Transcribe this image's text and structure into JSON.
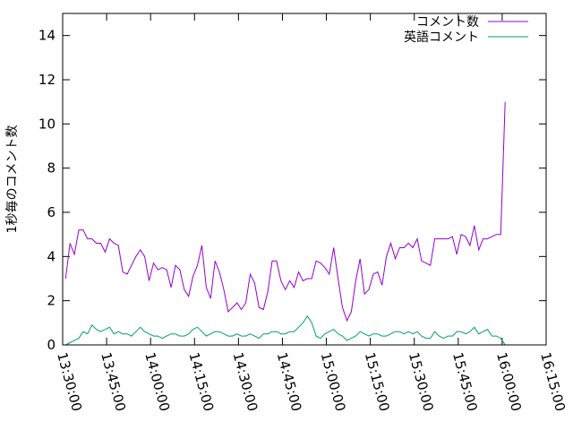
{
  "chart_data": {
    "type": "line",
    "title": "",
    "xlabel": "",
    "ylabel": "1秒毎のコメント数",
    "xlim": [
      "13:30:00",
      "16:15:00"
    ],
    "ylim": [
      0,
      15
    ],
    "x_ticks": [
      "13:30:00",
      "13:45:00",
      "14:00:00",
      "14:15:00",
      "14:30:00",
      "14:45:00",
      "15:00:00",
      "15:15:00",
      "15:30:00",
      "15:45:00",
      "16:00:00",
      "16:15:00"
    ],
    "y_ticks": [
      0,
      2,
      4,
      6,
      8,
      10,
      12,
      14
    ],
    "legend_position": "top-right",
    "grid": false,
    "x": [
      "13:31:00",
      "13:32:30",
      "13:34:00",
      "13:35:30",
      "13:37:00",
      "13:38:30",
      "13:40:00",
      "13:41:30",
      "13:43:00",
      "13:44:30",
      "13:46:00",
      "13:47:30",
      "13:49:00",
      "13:50:30",
      "13:52:00",
      "13:53:30",
      "13:55:00",
      "13:56:30",
      "13:58:00",
      "13:59:30",
      "14:01:00",
      "14:02:30",
      "14:04:00",
      "14:05:30",
      "14:07:00",
      "14:08:30",
      "14:10:00",
      "14:11:30",
      "14:13:00",
      "14:14:30",
      "14:16:00",
      "14:17:30",
      "14:19:00",
      "14:20:30",
      "14:22:00",
      "14:23:30",
      "14:25:00",
      "14:26:30",
      "14:28:00",
      "14:29:30",
      "14:31:00",
      "14:32:30",
      "14:34:00",
      "14:35:30",
      "14:37:00",
      "14:38:30",
      "14:40:00",
      "14:41:30",
      "14:43:00",
      "14:44:30",
      "14:46:00",
      "14:47:30",
      "14:49:00",
      "14:50:30",
      "14:52:00",
      "14:53:30",
      "14:55:00",
      "14:56:30",
      "14:58:00",
      "14:59:30",
      "15:01:00",
      "15:02:30",
      "15:04:00",
      "15:05:30",
      "15:07:00",
      "15:08:30",
      "15:10:00",
      "15:11:30",
      "15:13:00",
      "15:14:30",
      "15:16:00",
      "15:17:30",
      "15:19:00",
      "15:20:30",
      "15:22:00",
      "15:23:30",
      "15:25:00",
      "15:26:30",
      "15:28:00",
      "15:29:30",
      "15:31:00",
      "15:32:30",
      "15:34:00",
      "15:35:30",
      "15:37:00",
      "15:38:30",
      "15:40:00",
      "15:41:30",
      "15:43:00",
      "15:44:30",
      "15:46:00",
      "15:47:30",
      "15:49:00",
      "15:50:30",
      "15:52:00",
      "15:53:30",
      "15:55:00",
      "15:56:30",
      "15:58:00",
      "15:59:30",
      "16:01:00"
    ],
    "series": [
      {
        "name": "コメント数",
        "color": "#9400d3",
        "values": [
          3.0,
          4.6,
          4.1,
          5.2,
          5.2,
          4.8,
          4.8,
          4.6,
          4.6,
          4.2,
          4.8,
          4.6,
          4.5,
          3.3,
          3.2,
          3.6,
          4.0,
          4.3,
          4.0,
          2.9,
          3.7,
          3.4,
          3.5,
          3.4,
          2.6,
          3.6,
          3.4,
          2.5,
          2.2,
          3.1,
          3.6,
          4.5,
          2.6,
          2.1,
          3.8,
          3.3,
          2.5,
          1.5,
          1.7,
          1.9,
          1.6,
          1.9,
          3.2,
          2.8,
          1.7,
          1.6,
          2.4,
          3.8,
          3.8,
          2.9,
          2.5,
          2.9,
          2.6,
          3.3,
          2.9,
          3.0,
          3.0,
          3.8,
          3.7,
          3.5,
          3.2,
          4.4,
          3.0,
          1.7,
          1.1,
          1.5,
          2.9,
          3.9,
          2.3,
          2.5,
          3.2,
          3.3,
          2.7,
          4.0,
          4.6,
          3.9,
          4.4,
          4.4,
          4.6,
          4.4,
          4.8,
          3.8,
          3.7,
          3.6,
          4.8,
          4.8,
          4.8,
          4.8,
          4.9,
          4.1,
          5.0,
          4.9,
          4.5,
          5.4,
          4.3,
          4.8,
          4.8,
          4.9,
          5.0,
          5.0,
          11.0
        ]
      },
      {
        "name": "英語コメント",
        "color": "#009e73",
        "values": [
          0.0,
          0.1,
          0.2,
          0.3,
          0.6,
          0.5,
          0.9,
          0.7,
          0.6,
          0.7,
          0.8,
          0.5,
          0.6,
          0.5,
          0.5,
          0.4,
          0.6,
          0.8,
          0.6,
          0.5,
          0.4,
          0.4,
          0.3,
          0.4,
          0.5,
          0.5,
          0.4,
          0.4,
          0.5,
          0.7,
          0.8,
          0.6,
          0.4,
          0.5,
          0.6,
          0.6,
          0.5,
          0.4,
          0.4,
          0.5,
          0.4,
          0.4,
          0.5,
          0.4,
          0.3,
          0.5,
          0.5,
          0.6,
          0.6,
          0.5,
          0.5,
          0.6,
          0.6,
          0.8,
          1.0,
          1.3,
          1.0,
          0.4,
          0.3,
          0.5,
          0.6,
          0.7,
          0.5,
          0.4,
          0.2,
          0.3,
          0.4,
          0.6,
          0.5,
          0.4,
          0.5,
          0.5,
          0.4,
          0.4,
          0.5,
          0.6,
          0.6,
          0.5,
          0.6,
          0.5,
          0.6,
          0.4,
          0.3,
          0.3,
          0.6,
          0.4,
          0.3,
          0.4,
          0.4,
          0.6,
          0.6,
          0.5,
          0.6,
          0.8,
          0.5,
          0.6,
          0.7,
          0.4,
          0.4,
          0.3,
          0.0
        ]
      }
    ]
  }
}
